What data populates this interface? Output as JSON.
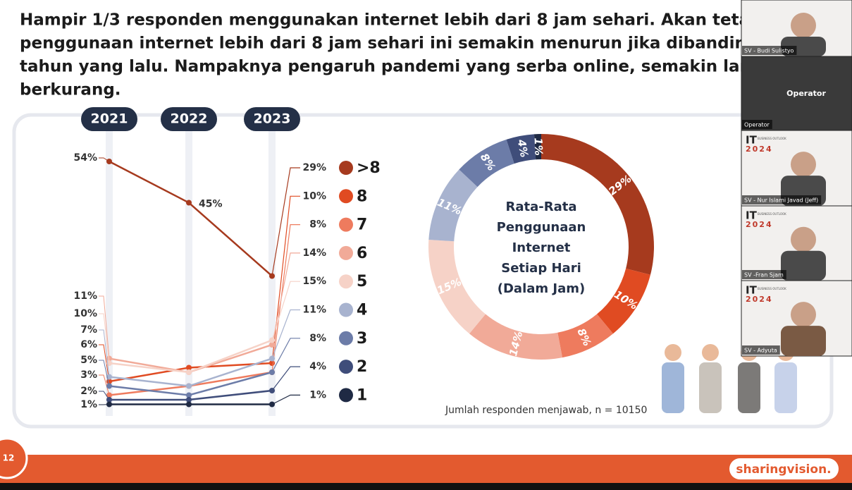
{
  "slide": {
    "title_lines": [
      "Hampir 1/3 responden menggunakan internet lebih dari 8 jam sehari. Akan tetapi",
      "penggunaan internet lebih dari 8 jam sehari ini semakin menurun jika dibandingkan",
      "tahun yang lalu. Nampaknya pengaruh pandemi yang serba online, semakin lama",
      "berkurang."
    ],
    "note": "Jumlah responden menjawab, n = 10150",
    "page_number": "12",
    "logo": "sharingvision."
  },
  "chart_data": [
    {
      "type": "line",
      "categories": [
        "2021",
        "2022",
        "2023"
      ],
      "series": [
        {
          "name": ">8",
          "color": "#a63a1e",
          "values": [
            54,
            45,
            29
          ],
          "value_labels": [
            "54%",
            "45%",
            "29%"
          ]
        },
        {
          "name": "8",
          "color": "#e04b22",
          "values": [
            6,
            9,
            10
          ],
          "value_labels": [
            "6%",
            null,
            "10%"
          ]
        },
        {
          "name": "7",
          "color": "#ee7b5e",
          "values": [
            3,
            5,
            8
          ],
          "value_labels": [
            "3%",
            null,
            "8%"
          ]
        },
        {
          "name": "6",
          "color": "#f1aa98",
          "values": [
            11,
            8,
            14
          ],
          "value_labels": [
            "11%",
            null,
            "14%"
          ]
        },
        {
          "name": "5",
          "color": "#f6d2c7",
          "values": [
            10,
            8,
            15
          ],
          "value_labels": [
            "10%",
            null,
            "15%"
          ]
        },
        {
          "name": "4",
          "color": "#a8b3cf",
          "values": [
            7,
            5,
            11
          ],
          "value_labels": [
            "7%",
            null,
            "11%"
          ]
        },
        {
          "name": "3",
          "color": "#6c7ca8",
          "values": [
            5,
            3,
            8
          ],
          "value_labels": [
            "5%",
            null,
            "8%"
          ]
        },
        {
          "name": "2",
          "color": "#3f4d7a",
          "values": [
            2,
            2,
            4
          ],
          "value_labels": [
            "2%",
            null,
            "4%"
          ]
        },
        {
          "name": "1",
          "color": "#1f2a44",
          "values": [
            1,
            1,
            1
          ],
          "value_labels": [
            "1%",
            null,
            "1%"
          ]
        }
      ]
    },
    {
      "type": "pie",
      "title_lines": [
        "Rata-Rata",
        "Penggunaan",
        "Internet",
        "Setiap Hari",
        "(Dalam Jam)"
      ],
      "categories": [
        ">8",
        "8",
        "7",
        "6",
        "5",
        "4",
        "3",
        "2",
        "1"
      ],
      "values": [
        29,
        10,
        8,
        14,
        15,
        11,
        8,
        4,
        1
      ],
      "value_labels": [
        "29%",
        "10%",
        "8%",
        "14%",
        "15%",
        "11%",
        "8%",
        "4%",
        "1%"
      ],
      "colors": [
        "#a63a1e",
        "#e04b22",
        "#ee7b5e",
        "#f1aa98",
        "#f6d2c7",
        "#a8b3cf",
        "#6c7ca8",
        "#3f4d7a",
        "#1f2a44"
      ]
    }
  ],
  "video": {
    "event_logo": {
      "it": "IT",
      "sub": "BUSINESS OUTLOOK",
      "year": "2024"
    },
    "tiles": [
      {
        "name": "SV - Budi Sulistyo"
      },
      {
        "name": "Operator",
        "caption": "Operator"
      },
      {
        "name": "SV - Nur Islami Javad (Jeff)"
      },
      {
        "name": "SV -Fran Sjam"
      },
      {
        "name": "SV - Adyuta"
      }
    ]
  }
}
